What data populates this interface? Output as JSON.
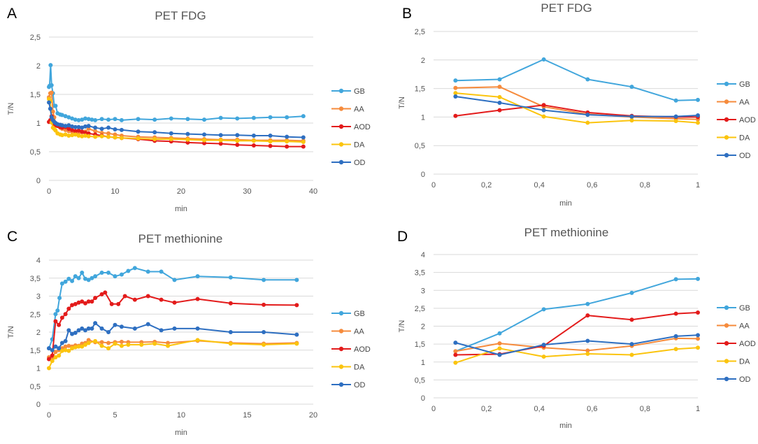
{
  "panel_letters": [
    "A",
    "B",
    "C",
    "D"
  ],
  "legend_labels": [
    "GB",
    "AA",
    "AOD",
    "DA",
    "OD"
  ],
  "series_colors": {
    "GB": "#41a6dc",
    "AA": "#f68b3c",
    "AOD": "#e31b1b",
    "DA": "#fbc40e",
    "OD": "#2e6fc1"
  },
  "chart_data": [
    {
      "type": "line",
      "title": "PET FDG",
      "xlabel": "min",
      "ylabel": "T/N",
      "xlim": [
        0,
        40
      ],
      "ylim": [
        0,
        2.5
      ],
      "x_ticks": [
        "0",
        "10",
        "20",
        "30",
        "40"
      ],
      "y_ticks": [
        "0",
        "0,5",
        "1",
        "1,5",
        "2",
        "2,5"
      ],
      "legend": "right",
      "series": [
        {
          "name": "GB",
          "x": [
            0,
            0.1,
            0.25,
            0.4,
            0.6,
            0.8,
            1.0,
            1.3,
            1.7,
            2.0,
            2.5,
            3.0,
            3.5,
            4.0,
            4.5,
            5.0,
            5.5,
            6.0,
            6.5,
            7.0,
            8.0,
            9.0,
            10.0,
            11.0,
            13.5,
            16.0,
            18.5,
            21.0,
            23.5,
            26.0,
            28.5,
            31.0,
            33.5,
            36.0,
            38.5
          ],
          "y": [
            1.63,
            1.65,
            2.01,
            1.66,
            1.52,
            1.3,
            1.3,
            1.17,
            1.15,
            1.14,
            1.12,
            1.1,
            1.08,
            1.06,
            1.05,
            1.06,
            1.08,
            1.07,
            1.06,
            1.05,
            1.07,
            1.06,
            1.07,
            1.05,
            1.07,
            1.06,
            1.08,
            1.07,
            1.06,
            1.09,
            1.08,
            1.09,
            1.1,
            1.1,
            1.12
          ]
        },
        {
          "name": "AA",
          "x": [
            0,
            0.2,
            0.4,
            0.6,
            0.8,
            1.0,
            1.3,
            1.7,
            2.0,
            2.5,
            3.0,
            3.5,
            4.0,
            4.5,
            5.0,
            5.5,
            6.0,
            7.0,
            8.0,
            9.0,
            10.0,
            11.0,
            13.5,
            16.0,
            18.5,
            21.0,
            23.5,
            26.0,
            28.5,
            31.0,
            33.5,
            36.0,
            38.5
          ],
          "y": [
            1.45,
            1.52,
            1.53,
            1.2,
            1.1,
            1.0,
            0.95,
            0.92,
            0.9,
            0.88,
            0.86,
            0.85,
            0.84,
            0.83,
            0.84,
            0.85,
            0.9,
            0.86,
            0.83,
            0.82,
            0.8,
            0.78,
            0.76,
            0.75,
            0.74,
            0.73,
            0.72,
            0.71,
            0.71,
            0.7,
            0.7,
            0.7,
            0.69
          ]
        },
        {
          "name": "AOD",
          "x": [
            0,
            0.2,
            0.4,
            0.6,
            0.8,
            1.0,
            1.3,
            1.7,
            2.0,
            2.5,
            3.0,
            3.5,
            4.0,
            4.5,
            5.0,
            5.5,
            6.0,
            7.0,
            8.0,
            9.0,
            10.0,
            11.0,
            13.5,
            16.0,
            18.5,
            21.0,
            23.5,
            26.0,
            28.5,
            31.0,
            33.5,
            36.0,
            38.5
          ],
          "y": [
            1.02,
            1.05,
            1.12,
            1.0,
            0.98,
            0.96,
            0.95,
            0.93,
            0.92,
            0.93,
            0.9,
            0.88,
            0.86,
            0.87,
            0.85,
            0.83,
            0.82,
            0.8,
            0.78,
            0.76,
            0.75,
            0.74,
            0.72,
            0.69,
            0.68,
            0.66,
            0.65,
            0.64,
            0.62,
            0.61,
            0.6,
            0.59,
            0.59
          ]
        },
        {
          "name": "DA",
          "x": [
            0,
            0.2,
            0.4,
            0.6,
            0.8,
            1.0,
            1.3,
            1.7,
            2.0,
            2.5,
            3.0,
            3.5,
            4.0,
            4.5,
            5.0,
            5.5,
            6.0,
            7.0,
            8.0,
            9.0,
            10.0,
            11.0,
            13.5,
            16.0,
            18.5,
            21.0,
            23.5,
            26.0,
            28.5,
            31.0,
            33.5,
            36.0,
            38.5
          ],
          "y": [
            1.42,
            1.38,
            1.01,
            0.92,
            0.9,
            0.87,
            0.82,
            0.8,
            0.79,
            0.8,
            0.78,
            0.79,
            0.8,
            0.78,
            0.77,
            0.78,
            0.77,
            0.76,
            0.77,
            0.76,
            0.75,
            0.74,
            0.73,
            0.72,
            0.72,
            0.71,
            0.7,
            0.7,
            0.69,
            0.69,
            0.68,
            0.68,
            0.67
          ]
        },
        {
          "name": "OD",
          "x": [
            0,
            0.2,
            0.4,
            0.6,
            0.8,
            1.0,
            1.3,
            1.7,
            2.0,
            2.5,
            3.0,
            3.5,
            4.0,
            4.5,
            5.0,
            5.5,
            6.0,
            7.0,
            8.0,
            9.0,
            10.0,
            11.0,
            13.5,
            16.0,
            18.5,
            21.0,
            23.5,
            26.0,
            28.5,
            31.0,
            33.5,
            36.0,
            38.5
          ],
          "y": [
            1.36,
            1.25,
            1.1,
            1.05,
            1.02,
            1.0,
            0.98,
            0.97,
            0.96,
            0.95,
            0.96,
            0.94,
            0.93,
            0.93,
            0.92,
            0.94,
            0.95,
            0.92,
            0.9,
            0.92,
            0.89,
            0.88,
            0.85,
            0.84,
            0.82,
            0.81,
            0.8,
            0.79,
            0.79,
            0.78,
            0.78,
            0.76,
            0.75
          ]
        }
      ]
    },
    {
      "type": "line",
      "title": "PET FDG",
      "xlabel": "min",
      "ylabel": "T/N",
      "xlim": [
        0,
        1
      ],
      "ylim": [
        0,
        2.5
      ],
      "x_ticks": [
        "0",
        "0,2",
        "0,4",
        "0,6",
        "0,8",
        "1"
      ],
      "y_ticks": [
        "0",
        "0,5",
        "1",
        "1,5",
        "2",
        "2,5"
      ],
      "legend": "right",
      "series": [
        {
          "name": "GB",
          "x": [
            0.083,
            0.25,
            0.417,
            0.583,
            0.75,
            0.917,
            1.0
          ],
          "y": [
            1.64,
            1.66,
            2.01,
            1.66,
            1.53,
            1.29,
            1.3
          ]
        },
        {
          "name": "AA",
          "x": [
            0.083,
            0.25,
            0.417,
            0.583,
            0.75,
            0.917,
            1.0
          ],
          "y": [
            1.51,
            1.53,
            1.18,
            1.05,
            1.0,
            0.97,
            0.96
          ]
        },
        {
          "name": "AOD",
          "x": [
            0.083,
            0.25,
            0.417,
            0.583,
            0.75,
            0.917,
            1.0
          ],
          "y": [
            1.02,
            1.12,
            1.21,
            1.08,
            1.02,
            1.0,
            1.0
          ]
        },
        {
          "name": "DA",
          "x": [
            0.083,
            0.25,
            0.417,
            0.583,
            0.75,
            0.917,
            1.0
          ],
          "y": [
            1.42,
            1.35,
            1.01,
            0.9,
            0.94,
            0.93,
            0.9
          ]
        },
        {
          "name": "OD",
          "x": [
            0.083,
            0.25,
            0.417,
            0.583,
            0.75,
            0.917,
            1.0
          ],
          "y": [
            1.36,
            1.25,
            1.12,
            1.04,
            1.01,
            1.01,
            1.03
          ]
        }
      ]
    },
    {
      "type": "line",
      "title": "PET methionine",
      "xlabel": "min",
      "ylabel": "T/N",
      "xlim": [
        0,
        20
      ],
      "ylim": [
        0,
        4
      ],
      "x_ticks": [
        "0",
        "5",
        "10",
        "15",
        "20"
      ],
      "y_ticks": [
        "0",
        "0,5",
        "1",
        "1,5",
        "2",
        "2,5",
        "3",
        "3,5",
        "4"
      ],
      "legend": "right",
      "series": [
        {
          "name": "GB",
          "x": [
            0,
            0.25,
            0.5,
            0.65,
            0.8,
            1.0,
            1.25,
            1.5,
            1.75,
            2.0,
            2.25,
            2.5,
            2.75,
            3.0,
            3.25,
            3.5,
            4.0,
            4.5,
            5.0,
            5.5,
            6.0,
            6.5,
            7.5,
            8.5,
            9.5,
            11.25,
            13.75,
            16.25,
            18.75
          ],
          "y": [
            1.55,
            1.8,
            2.5,
            2.6,
            2.95,
            3.35,
            3.4,
            3.48,
            3.42,
            3.55,
            3.5,
            3.65,
            3.48,
            3.45,
            3.5,
            3.55,
            3.65,
            3.65,
            3.55,
            3.6,
            3.7,
            3.78,
            3.68,
            3.68,
            3.45,
            3.55,
            3.52,
            3.45,
            3.45
          ]
        },
        {
          "name": "AA",
          "x": [
            0,
            0.25,
            0.5,
            0.75,
            1.0,
            1.25,
            1.5,
            1.75,
            2.0,
            2.25,
            2.5,
            2.75,
            3.0,
            3.5,
            4.0,
            4.5,
            5.0,
            5.5,
            6.0,
            7.0,
            8.0,
            9.0,
            11.25,
            13.75,
            16.25,
            18.75
          ],
          "y": [
            1.3,
            1.3,
            1.45,
            1.5,
            1.55,
            1.6,
            1.62,
            1.6,
            1.63,
            1.62,
            1.68,
            1.7,
            1.78,
            1.72,
            1.72,
            1.7,
            1.72,
            1.73,
            1.72,
            1.72,
            1.73,
            1.7,
            1.76,
            1.7,
            1.68,
            1.7
          ]
        },
        {
          "name": "AOD",
          "x": [
            0,
            0.25,
            0.5,
            0.75,
            1.0,
            1.25,
            1.5,
            1.75,
            2.0,
            2.25,
            2.5,
            2.75,
            3.0,
            3.25,
            3.5,
            4.0,
            4.25,
            4.75,
            5.25,
            5.75,
            6.5,
            7.5,
            8.5,
            9.5,
            11.25,
            13.75,
            16.25,
            18.75
          ],
          "y": [
            1.25,
            1.35,
            2.3,
            2.2,
            2.4,
            2.5,
            2.65,
            2.75,
            2.78,
            2.82,
            2.85,
            2.8,
            2.85,
            2.85,
            2.95,
            3.05,
            3.1,
            2.78,
            2.78,
            3.0,
            2.9,
            3.0,
            2.9,
            2.82,
            2.92,
            2.8,
            2.76,
            2.75
          ]
        },
        {
          "name": "DA",
          "x": [
            0,
            0.25,
            0.5,
            0.75,
            1.0,
            1.25,
            1.5,
            1.75,
            2.0,
            2.25,
            2.5,
            2.75,
            3.0,
            3.5,
            4.0,
            4.5,
            5.0,
            5.5,
            6.0,
            7.0,
            8.0,
            9.0,
            11.25,
            13.75,
            16.25,
            18.75
          ],
          "y": [
            1.0,
            1.2,
            1.3,
            1.35,
            1.48,
            1.5,
            1.48,
            1.55,
            1.58,
            1.6,
            1.6,
            1.65,
            1.7,
            1.75,
            1.62,
            1.55,
            1.68,
            1.62,
            1.65,
            1.65,
            1.68,
            1.62,
            1.78,
            1.68,
            1.65,
            1.68
          ]
        },
        {
          "name": "OD",
          "x": [
            0,
            0.25,
            0.5,
            0.75,
            1.0,
            1.25,
            1.5,
            1.75,
            2.0,
            2.25,
            2.5,
            2.75,
            3.0,
            3.25,
            3.5,
            4.0,
            4.5,
            5.0,
            5.5,
            6.5,
            7.5,
            8.5,
            9.5,
            11.25,
            13.75,
            16.25,
            18.75
          ],
          "y": [
            1.55,
            1.5,
            1.6,
            1.55,
            1.7,
            1.75,
            2.05,
            1.95,
            1.98,
            2.05,
            2.1,
            2.05,
            2.1,
            2.1,
            2.25,
            2.1,
            2.0,
            2.2,
            2.15,
            2.1,
            2.22,
            2.05,
            2.1,
            2.1,
            2.0,
            2.0,
            1.93
          ]
        }
      ]
    },
    {
      "type": "line",
      "title": "PET methionine",
      "xlabel": "min",
      "ylabel": "T/N",
      "xlim": [
        0,
        1
      ],
      "ylim": [
        0,
        4
      ],
      "x_ticks": [
        "0",
        "0,2",
        "0,4",
        "0,6",
        "0,8",
        "1"
      ],
      "y_ticks": [
        "0",
        "0,5",
        "1",
        "1,5",
        "2",
        "2,5",
        "3",
        "3,5",
        "4"
      ],
      "legend": "right",
      "series": [
        {
          "name": "GB",
          "x": [
            0.083,
            0.25,
            0.417,
            0.583,
            0.75,
            0.917,
            1.0
          ],
          "y": [
            1.3,
            1.8,
            2.47,
            2.62,
            2.93,
            3.31,
            3.32
          ]
        },
        {
          "name": "AA",
          "x": [
            0.083,
            0.25,
            0.417,
            0.583,
            0.75,
            0.917,
            1.0
          ],
          "y": [
            1.3,
            1.52,
            1.4,
            1.32,
            1.45,
            1.66,
            1.65
          ]
        },
        {
          "name": "AOD",
          "x": [
            0.083,
            0.25,
            0.417,
            0.583,
            0.75,
            0.917,
            1.0
          ],
          "y": [
            1.2,
            1.22,
            1.45,
            2.3,
            2.18,
            2.35,
            2.38
          ]
        },
        {
          "name": "DA",
          "x": [
            0.083,
            0.25,
            0.417,
            0.583,
            0.75,
            0.917,
            1.0
          ],
          "y": [
            0.98,
            1.38,
            1.15,
            1.23,
            1.2,
            1.36,
            1.4
          ]
        },
        {
          "name": "OD",
          "x": [
            0.083,
            0.25,
            0.417,
            0.583,
            0.75,
            0.917,
            1.0
          ],
          "y": [
            1.54,
            1.2,
            1.48,
            1.59,
            1.5,
            1.72,
            1.75
          ]
        }
      ]
    }
  ]
}
